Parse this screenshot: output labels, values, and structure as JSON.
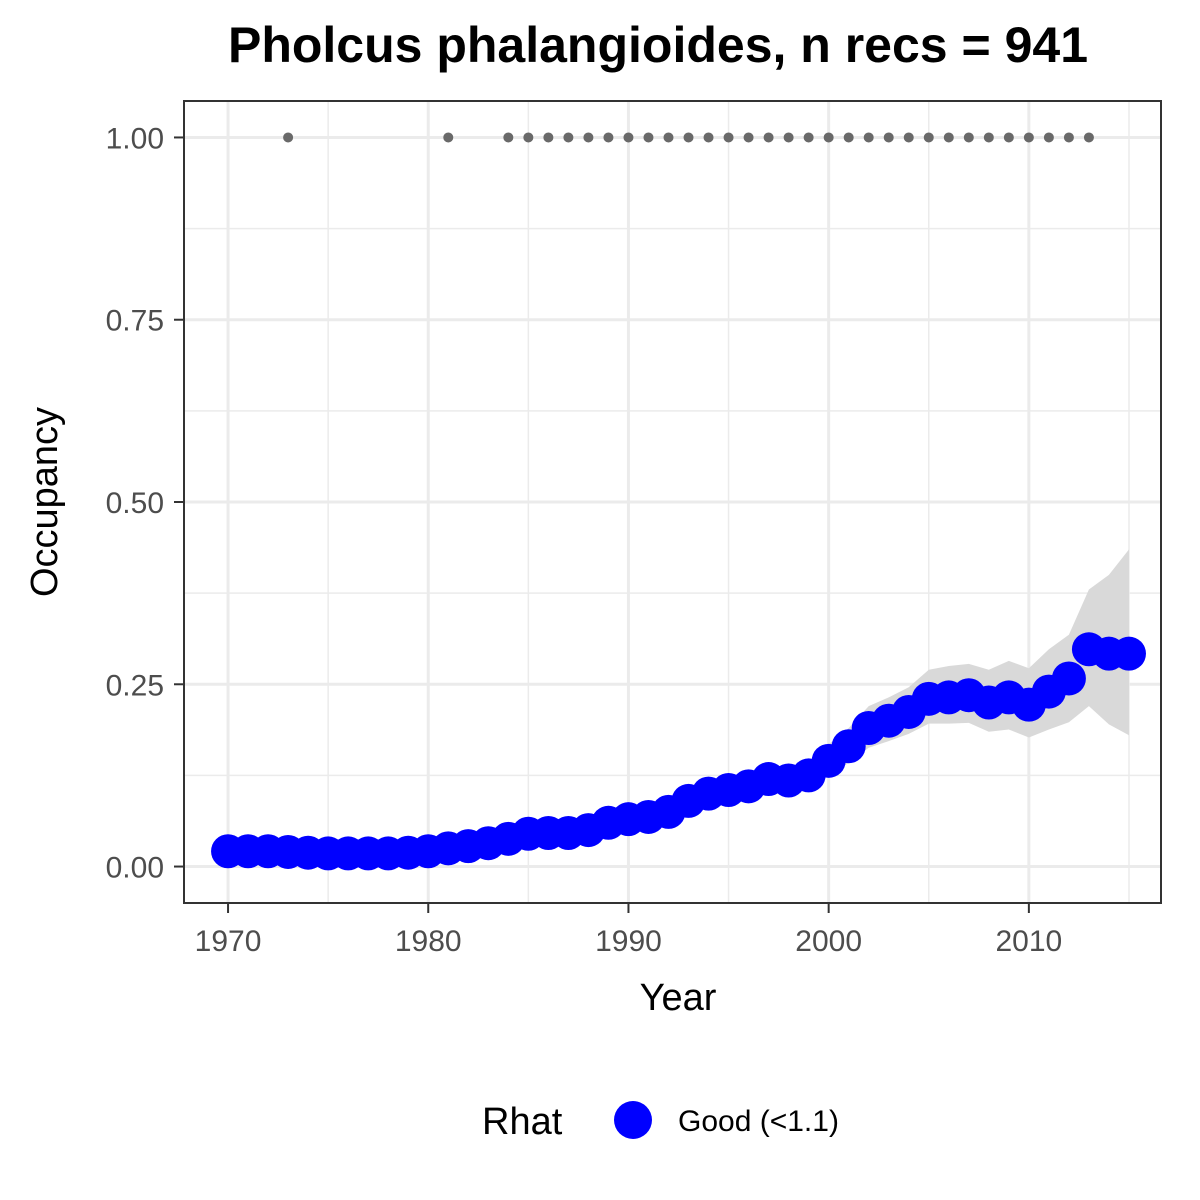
{
  "chart_data": {
    "type": "line",
    "title": "Pholcus phalangioides, n recs = 941",
    "xlabel": "Year",
    "ylabel": "Occupancy",
    "xlim": [
      1967.8,
      2016.6
    ],
    "ylim": [
      -0.05,
      1.05
    ],
    "x_ticks": [
      1970,
      1980,
      1990,
      2000,
      2010
    ],
    "x_tick_labels": [
      "1970",
      "1980",
      "1990",
      "2000",
      "2010"
    ],
    "y_ticks": [
      0,
      0.25,
      0.5,
      0.75,
      1.0
    ],
    "y_tick_labels": [
      "0.00",
      "0.25",
      "0.50",
      "0.75",
      "1.00"
    ],
    "grid": true,
    "legend": {
      "title": "Rhat",
      "position": "bottom",
      "entries": [
        "Good (<1.1)"
      ]
    },
    "colors": {
      "points": "#0000ff",
      "ribbon": "#d9d9d9",
      "records": "#696969",
      "grid": "#ebebeb",
      "panel_border": "#333333"
    },
    "series": [
      {
        "name": "Good (<1.1)",
        "x": [
          1970,
          1971,
          1972,
          1973,
          1974,
          1975,
          1976,
          1977,
          1978,
          1979,
          1980,
          1981,
          1982,
          1983,
          1984,
          1985,
          1986,
          1987,
          1988,
          1989,
          1990,
          1991,
          1992,
          1993,
          1994,
          1995,
          1996,
          1997,
          1998,
          1999,
          2000,
          2001,
          2002,
          2003,
          2004,
          2005,
          2006,
          2007,
          2008,
          2009,
          2010,
          2011,
          2012,
          2013,
          2014,
          2015
        ],
        "y": [
          0.021,
          0.021,
          0.021,
          0.02,
          0.019,
          0.018,
          0.018,
          0.018,
          0.018,
          0.019,
          0.021,
          0.025,
          0.028,
          0.032,
          0.038,
          0.045,
          0.046,
          0.046,
          0.05,
          0.06,
          0.065,
          0.068,
          0.075,
          0.09,
          0.1,
          0.105,
          0.11,
          0.12,
          0.118,
          0.125,
          0.145,
          0.165,
          0.19,
          0.2,
          0.212,
          0.23,
          0.232,
          0.235,
          0.225,
          0.232,
          0.222,
          0.24,
          0.258,
          0.298,
          0.292,
          0.292
        ],
        "lower": [
          0.014,
          0.015,
          0.015,
          0.014,
          0.013,
          0.012,
          0.012,
          0.012,
          0.012,
          0.013,
          0.015,
          0.019,
          0.022,
          0.025,
          0.031,
          0.037,
          0.038,
          0.038,
          0.042,
          0.051,
          0.055,
          0.058,
          0.064,
          0.078,
          0.088,
          0.093,
          0.097,
          0.105,
          0.103,
          0.108,
          0.125,
          0.142,
          0.163,
          0.172,
          0.182,
          0.196,
          0.196,
          0.197,
          0.185,
          0.188,
          0.177,
          0.188,
          0.198,
          0.22,
          0.195,
          0.18
        ],
        "upper": [
          0.03,
          0.03,
          0.03,
          0.029,
          0.028,
          0.027,
          0.027,
          0.027,
          0.027,
          0.028,
          0.03,
          0.034,
          0.037,
          0.041,
          0.047,
          0.055,
          0.056,
          0.056,
          0.06,
          0.071,
          0.077,
          0.08,
          0.088,
          0.103,
          0.114,
          0.119,
          0.125,
          0.137,
          0.135,
          0.143,
          0.168,
          0.19,
          0.22,
          0.232,
          0.246,
          0.27,
          0.275,
          0.278,
          0.27,
          0.282,
          0.272,
          0.298,
          0.318,
          0.38,
          0.4,
          0.435
        ]
      },
      {
        "name": "",
        "marker": "small-dot",
        "x": [
          1973,
          1981,
          1984,
          1985,
          1986,
          1987,
          1988,
          1989,
          1990,
          1991,
          1992,
          1993,
          1994,
          1995,
          1996,
          1997,
          1998,
          1999,
          2000,
          2001,
          2002,
          2003,
          2004,
          2005,
          2006,
          2007,
          2008,
          2009,
          2010,
          2011,
          2012,
          2013
        ],
        "y": [
          1,
          1,
          1,
          1,
          1,
          1,
          1,
          1,
          1,
          1,
          1,
          1,
          1,
          1,
          1,
          1,
          1,
          1,
          1,
          1,
          1,
          1,
          1,
          1,
          1,
          1,
          1,
          1,
          1,
          1,
          1,
          1
        ]
      }
    ]
  }
}
